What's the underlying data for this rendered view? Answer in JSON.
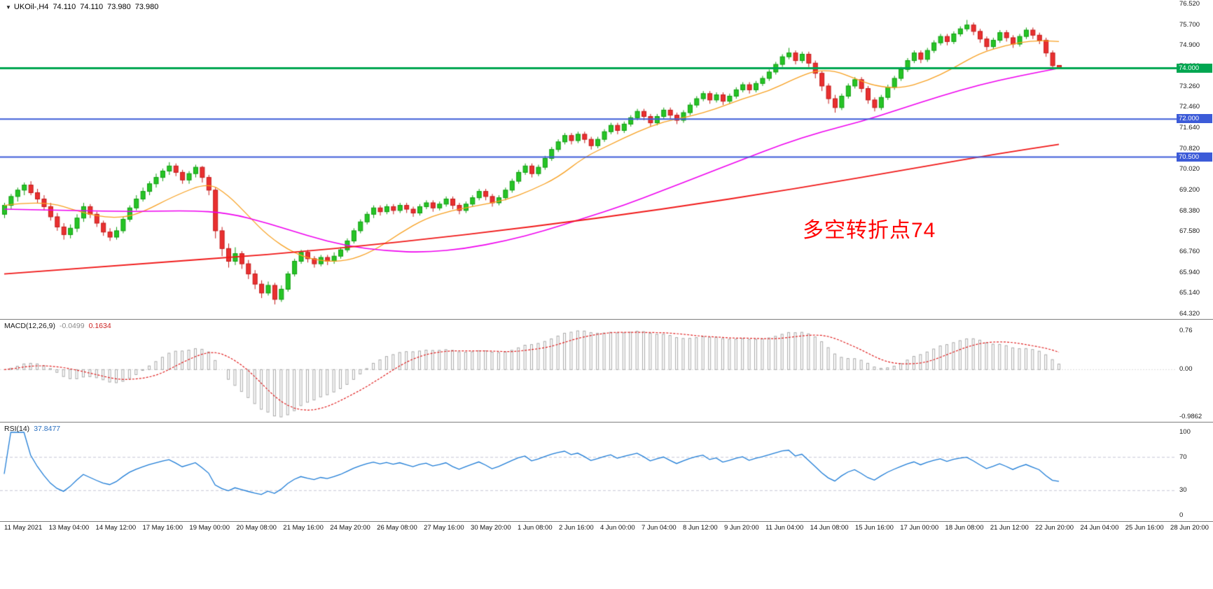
{
  "header": {
    "dropdown_icon": "▼",
    "symbol": "UKOil-,H4",
    "ohlc": {
      "open": "74.110",
      "high": "74.110",
      "low": "73.980",
      "close": "73.980"
    }
  },
  "annotation": {
    "text": "多空转折点74",
    "color": "#FF0000"
  },
  "chart_data": {
    "type": "candlestick",
    "title": "UKOil-,H4",
    "ylim": [
      64.32,
      76.52
    ],
    "y_ticks": [
      "76.520",
      "75.700",
      "74.900",
      "74.080",
      "73.260",
      "72.460",
      "71.640",
      "70.820",
      "70.020",
      "69.200",
      "68.380",
      "67.580",
      "66.760",
      "65.940",
      "65.140",
      "64.320"
    ],
    "x_labels": [
      "11 May 2021",
      "13 May 04:00",
      "14 May 12:00",
      "17 May 16:00",
      "19 May 00:00",
      "20 May 08:00",
      "21 May 16:00",
      "24 May 20:00",
      "26 May 08:00",
      "27 May 16:00",
      "30 May 20:00",
      "1 Jun 08:00",
      "2 Jun 16:00",
      "4 Jun 00:00",
      "7 Jun 04:00",
      "8 Jun 12:00",
      "9 Jun 20:00",
      "11 Jun 04:00",
      "14 Jun 08:00",
      "15 Jun 16:00",
      "17 Jun 00:00",
      "18 Jun 08:00",
      "21 Jun 12:00",
      "22 Jun 20:00",
      "24 Jun 04:00",
      "25 Jun 16:00",
      "28 Jun 20:00"
    ],
    "horizontal_lines": [
      {
        "price": 74.0,
        "label": "74.000",
        "color": "#00A651",
        "width": 3
      },
      {
        "price": 72.0,
        "label": "72.000",
        "color": "#3C5BD8",
        "width": 2
      },
      {
        "price": 70.5,
        "label": "70.500",
        "color": "#3C5BD8",
        "width": 2
      }
    ],
    "candle_colors": {
      "up_fill": "#26C426",
      "up_border": "#0E9E0E",
      "down_fill": "#E93030",
      "down_border": "#C41A1A"
    },
    "moving_averages": [
      {
        "name": "ma-fast",
        "color": "#F7A021",
        "width": 1.3,
        "points": [
          [
            0,
            68.6
          ],
          [
            6,
            68.8
          ],
          [
            12,
            68.3
          ],
          [
            16,
            68.1
          ],
          [
            20,
            68.2
          ],
          [
            26,
            69.0
          ],
          [
            31,
            69.5
          ],
          [
            34,
            69.0
          ],
          [
            37,
            68.2
          ],
          [
            40,
            67.4
          ],
          [
            44,
            66.7
          ],
          [
            48,
            66.4
          ],
          [
            52,
            66.4
          ],
          [
            56,
            66.8
          ],
          [
            60,
            67.5
          ],
          [
            64,
            68.1
          ],
          [
            68,
            68.4
          ],
          [
            72,
            68.6
          ],
          [
            76,
            68.8
          ],
          [
            80,
            69.2
          ],
          [
            84,
            69.7
          ],
          [
            88,
            70.5
          ],
          [
            92,
            71.0
          ],
          [
            96,
            71.5
          ],
          [
            100,
            71.9
          ],
          [
            104,
            72.1
          ],
          [
            108,
            72.4
          ],
          [
            112,
            72.8
          ],
          [
            116,
            73.1
          ],
          [
            120,
            73.6
          ],
          [
            123,
            73.9
          ],
          [
            126,
            73.9
          ],
          [
            129,
            73.6
          ],
          [
            132,
            73.3
          ],
          [
            136,
            73.2
          ],
          [
            140,
            73.5
          ],
          [
            144,
            74.0
          ],
          [
            148,
            74.6
          ],
          [
            152,
            74.9
          ],
          [
            156,
            75.1
          ],
          [
            160,
            75.05
          ]
        ]
      },
      {
        "name": "ma-medium",
        "color": "#EE00EE",
        "width": 1.6,
        "points": [
          [
            0,
            68.45
          ],
          [
            10,
            68.4
          ],
          [
            20,
            68.35
          ],
          [
            28,
            68.4
          ],
          [
            34,
            68.3
          ],
          [
            40,
            67.9
          ],
          [
            46,
            67.4
          ],
          [
            52,
            67.0
          ],
          [
            58,
            66.8
          ],
          [
            64,
            66.75
          ],
          [
            70,
            66.9
          ],
          [
            76,
            67.2
          ],
          [
            82,
            67.6
          ],
          [
            88,
            68.1
          ],
          [
            94,
            68.6
          ],
          [
            100,
            69.2
          ],
          [
            106,
            69.8
          ],
          [
            112,
            70.4
          ],
          [
            118,
            71.0
          ],
          [
            124,
            71.5
          ],
          [
            130,
            71.9
          ],
          [
            136,
            72.4
          ],
          [
            142,
            72.9
          ],
          [
            148,
            73.35
          ],
          [
            154,
            73.7
          ],
          [
            160,
            74.0
          ]
        ]
      },
      {
        "name": "ma-slow",
        "color": "#F01818",
        "width": 1.8,
        "points": [
          [
            0,
            65.9
          ],
          [
            20,
            66.3
          ],
          [
            40,
            66.65
          ],
          [
            60,
            67.15
          ],
          [
            80,
            67.75
          ],
          [
            100,
            68.45
          ],
          [
            120,
            69.25
          ],
          [
            140,
            70.15
          ],
          [
            150,
            70.6
          ],
          [
            160,
            71.0
          ]
        ]
      }
    ],
    "candles": [
      [
        68.25,
        68.7,
        68.1,
        68.6
      ],
      [
        68.6,
        69.05,
        68.45,
        68.95
      ],
      [
        68.95,
        69.3,
        68.75,
        69.2
      ],
      [
        69.2,
        69.5,
        69.0,
        69.4
      ],
      [
        69.4,
        69.55,
        69.0,
        69.1
      ],
      [
        69.1,
        69.25,
        68.7,
        68.85
      ],
      [
        68.85,
        69.0,
        68.4,
        68.55
      ],
      [
        68.55,
        68.7,
        68.0,
        68.15
      ],
      [
        68.15,
        68.3,
        67.6,
        67.75
      ],
      [
        67.75,
        67.9,
        67.25,
        67.45
      ],
      [
        67.45,
        67.85,
        67.3,
        67.7
      ],
      [
        67.7,
        68.25,
        67.55,
        68.1
      ],
      [
        68.1,
        68.7,
        67.95,
        68.55
      ],
      [
        68.55,
        68.65,
        68.1,
        68.25
      ],
      [
        68.25,
        68.35,
        67.75,
        67.9
      ],
      [
        67.9,
        68.0,
        67.4,
        67.55
      ],
      [
        67.55,
        67.7,
        67.2,
        67.35
      ],
      [
        67.35,
        67.75,
        67.25,
        67.6
      ],
      [
        67.6,
        68.15,
        67.5,
        68.05
      ],
      [
        68.05,
        68.6,
        67.95,
        68.5
      ],
      [
        68.5,
        69.0,
        68.4,
        68.85
      ],
      [
        68.85,
        69.3,
        68.75,
        69.15
      ],
      [
        69.15,
        69.55,
        69.0,
        69.45
      ],
      [
        69.45,
        69.85,
        69.3,
        69.7
      ],
      [
        69.7,
        70.05,
        69.55,
        69.95
      ],
      [
        69.95,
        70.3,
        69.8,
        70.15
      ],
      [
        70.15,
        70.25,
        69.75,
        69.9
      ],
      [
        69.9,
        70.0,
        69.45,
        69.6
      ],
      [
        69.6,
        69.95,
        69.45,
        69.85
      ],
      [
        69.85,
        70.2,
        69.7,
        70.1
      ],
      [
        70.1,
        70.15,
        69.5,
        69.7
      ],
      [
        69.7,
        69.8,
        69.0,
        69.2
      ],
      [
        69.2,
        69.3,
        67.3,
        67.6
      ],
      [
        67.6,
        67.75,
        66.6,
        66.9
      ],
      [
        66.9,
        67.1,
        66.15,
        66.4
      ],
      [
        66.4,
        66.95,
        66.25,
        66.7
      ],
      [
        66.7,
        66.8,
        66.1,
        66.3
      ],
      [
        66.3,
        66.45,
        65.7,
        65.9
      ],
      [
        65.9,
        66.05,
        65.3,
        65.5
      ],
      [
        65.5,
        65.65,
        64.95,
        65.15
      ],
      [
        65.15,
        65.6,
        65.05,
        65.45
      ],
      [
        65.45,
        65.55,
        64.7,
        64.9
      ],
      [
        64.9,
        65.45,
        64.8,
        65.3
      ],
      [
        65.3,
        66.0,
        65.2,
        65.9
      ],
      [
        65.9,
        66.5,
        65.8,
        66.4
      ],
      [
        66.4,
        66.85,
        66.3,
        66.75
      ],
      [
        66.75,
        66.85,
        66.35,
        66.5
      ],
      [
        66.5,
        66.6,
        66.15,
        66.3
      ],
      [
        66.3,
        66.65,
        66.2,
        66.55
      ],
      [
        66.55,
        66.65,
        66.25,
        66.4
      ],
      [
        66.4,
        66.75,
        66.3,
        66.6
      ],
      [
        66.6,
        66.95,
        66.5,
        66.85
      ],
      [
        66.85,
        67.3,
        66.75,
        67.2
      ],
      [
        67.2,
        67.7,
        67.1,
        67.6
      ],
      [
        67.6,
        68.05,
        67.5,
        67.95
      ],
      [
        67.95,
        68.35,
        67.85,
        68.25
      ],
      [
        68.25,
        68.6,
        68.1,
        68.5
      ],
      [
        68.5,
        68.6,
        68.2,
        68.35
      ],
      [
        68.35,
        68.65,
        68.25,
        68.55
      ],
      [
        68.55,
        68.65,
        68.25,
        68.4
      ],
      [
        68.4,
        68.7,
        68.3,
        68.6
      ],
      [
        68.6,
        68.7,
        68.3,
        68.45
      ],
      [
        68.45,
        68.55,
        68.15,
        68.3
      ],
      [
        68.3,
        68.65,
        68.2,
        68.55
      ],
      [
        68.55,
        68.8,
        68.45,
        68.7
      ],
      [
        68.7,
        68.8,
        68.35,
        68.5
      ],
      [
        68.5,
        68.75,
        68.4,
        68.65
      ],
      [
        68.65,
        68.95,
        68.55,
        68.85
      ],
      [
        68.85,
        68.95,
        68.45,
        68.6
      ],
      [
        68.6,
        68.7,
        68.25,
        68.4
      ],
      [
        68.4,
        68.75,
        68.3,
        68.65
      ],
      [
        68.65,
        69.0,
        68.55,
        68.9
      ],
      [
        68.9,
        69.25,
        68.8,
        69.15
      ],
      [
        69.15,
        69.25,
        68.8,
        68.95
      ],
      [
        68.95,
        69.05,
        68.55,
        68.7
      ],
      [
        68.7,
        69.0,
        68.6,
        68.9
      ],
      [
        68.9,
        69.3,
        68.8,
        69.2
      ],
      [
        69.2,
        69.65,
        69.1,
        69.55
      ],
      [
        69.55,
        70.0,
        69.45,
        69.9
      ],
      [
        69.9,
        70.25,
        69.8,
        70.15
      ],
      [
        70.15,
        70.25,
        69.7,
        69.85
      ],
      [
        69.85,
        70.2,
        69.75,
        70.1
      ],
      [
        70.1,
        70.55,
        70.0,
        70.45
      ],
      [
        70.45,
        70.9,
        70.35,
        70.8
      ],
      [
        70.8,
        71.2,
        70.7,
        71.1
      ],
      [
        71.1,
        71.45,
        71.0,
        71.35
      ],
      [
        71.35,
        71.45,
        71.0,
        71.15
      ],
      [
        71.15,
        71.5,
        71.05,
        71.4
      ],
      [
        71.4,
        71.5,
        71.05,
        71.2
      ],
      [
        71.2,
        71.3,
        70.8,
        70.95
      ],
      [
        70.95,
        71.3,
        70.85,
        71.2
      ],
      [
        71.2,
        71.6,
        71.1,
        71.5
      ],
      [
        71.5,
        71.85,
        71.4,
        71.75
      ],
      [
        71.75,
        71.85,
        71.4,
        71.55
      ],
      [
        71.55,
        71.9,
        71.45,
        71.8
      ],
      [
        71.8,
        72.15,
        71.7,
        72.05
      ],
      [
        72.05,
        72.4,
        71.95,
        72.3
      ],
      [
        72.3,
        72.4,
        71.95,
        72.1
      ],
      [
        72.1,
        72.2,
        71.7,
        71.85
      ],
      [
        71.85,
        72.2,
        71.75,
        72.1
      ],
      [
        72.1,
        72.45,
        72.0,
        72.35
      ],
      [
        72.35,
        72.45,
        72.0,
        72.15
      ],
      [
        72.15,
        72.25,
        71.8,
        71.95
      ],
      [
        71.95,
        72.35,
        71.85,
        72.25
      ],
      [
        72.25,
        72.65,
        72.15,
        72.55
      ],
      [
        72.55,
        72.9,
        72.45,
        72.8
      ],
      [
        72.8,
        73.1,
        72.7,
        73.0
      ],
      [
        73.0,
        73.1,
        72.6,
        72.75
      ],
      [
        72.75,
        73.05,
        72.65,
        72.95
      ],
      [
        72.95,
        73.05,
        72.55,
        72.7
      ],
      [
        72.7,
        73.0,
        72.6,
        72.9
      ],
      [
        72.9,
        73.25,
        72.8,
        73.15
      ],
      [
        73.15,
        73.45,
        73.05,
        73.35
      ],
      [
        73.35,
        73.45,
        73.0,
        73.15
      ],
      [
        73.15,
        73.5,
        73.05,
        73.4
      ],
      [
        73.4,
        73.7,
        73.3,
        73.6
      ],
      [
        73.6,
        73.95,
        73.5,
        73.85
      ],
      [
        73.85,
        74.25,
        73.75,
        74.15
      ],
      [
        74.15,
        74.55,
        74.05,
        74.45
      ],
      [
        74.45,
        74.8,
        74.35,
        74.6
      ],
      [
        74.6,
        74.7,
        74.15,
        74.3
      ],
      [
        74.3,
        74.65,
        74.2,
        74.55
      ],
      [
        74.55,
        74.65,
        74.05,
        74.2
      ],
      [
        74.2,
        74.3,
        73.6,
        73.8
      ],
      [
        73.8,
        73.9,
        73.1,
        73.3
      ],
      [
        73.3,
        73.4,
        72.6,
        72.8
      ],
      [
        72.8,
        72.95,
        72.25,
        72.45
      ],
      [
        72.45,
        73.0,
        72.35,
        72.9
      ],
      [
        72.9,
        73.4,
        72.8,
        73.3
      ],
      [
        73.3,
        73.65,
        73.2,
        73.55
      ],
      [
        73.55,
        73.65,
        73.05,
        73.2
      ],
      [
        73.2,
        73.3,
        72.6,
        72.75
      ],
      [
        72.75,
        72.85,
        72.3,
        72.45
      ],
      [
        72.45,
        72.95,
        72.35,
        72.85
      ],
      [
        72.85,
        73.35,
        72.75,
        73.25
      ],
      [
        73.25,
        73.7,
        73.15,
        73.6
      ],
      [
        73.6,
        74.05,
        73.5,
        73.95
      ],
      [
        73.95,
        74.4,
        73.85,
        74.3
      ],
      [
        74.3,
        74.7,
        74.2,
        74.6
      ],
      [
        74.6,
        74.7,
        74.2,
        74.35
      ],
      [
        74.35,
        74.8,
        74.25,
        74.7
      ],
      [
        74.7,
        75.1,
        74.6,
        75.0
      ],
      [
        75.0,
        75.35,
        74.9,
        75.25
      ],
      [
        75.25,
        75.35,
        74.9,
        75.05
      ],
      [
        75.05,
        75.45,
        74.95,
        75.35
      ],
      [
        75.35,
        75.65,
        75.25,
        75.55
      ],
      [
        75.55,
        75.9,
        75.45,
        75.7
      ],
      [
        75.7,
        75.8,
        75.3,
        75.45
      ],
      [
        75.45,
        75.55,
        75.0,
        75.15
      ],
      [
        75.15,
        75.25,
        74.7,
        74.85
      ],
      [
        74.85,
        75.2,
        74.75,
        75.1
      ],
      [
        75.1,
        75.5,
        75.0,
        75.4
      ],
      [
        75.4,
        75.5,
        75.05,
        75.2
      ],
      [
        75.2,
        75.3,
        74.8,
        74.95
      ],
      [
        74.95,
        75.35,
        74.85,
        75.25
      ],
      [
        75.25,
        75.6,
        75.15,
        75.5
      ],
      [
        75.5,
        75.6,
        75.15,
        75.3
      ],
      [
        75.3,
        75.4,
        74.95,
        75.1
      ],
      [
        75.1,
        75.2,
        74.45,
        74.6
      ],
      [
        74.6,
        74.7,
        73.95,
        74.1
      ],
      [
        74.11,
        74.11,
        73.98,
        73.98
      ]
    ],
    "indicators": [
      {
        "type": "MACD",
        "label": "MACD(12,26,9)",
        "value_main": "-0.0499",
        "value_signal": "0.1634",
        "params": [
          12,
          26,
          9
        ],
        "ylim": [
          -0.9862,
          0.76
        ],
        "y_ticks": [
          "0.76",
          "0.00",
          "-0.9862"
        ],
        "histogram_color": "#A8A8A8",
        "signal_color": "#E02020"
      },
      {
        "type": "RSI",
        "label": "RSI(14)",
        "value": "37.8477",
        "period": 14,
        "ylim": [
          0,
          100
        ],
        "y_ticks": [
          "100",
          "70",
          "30",
          "0"
        ],
        "levels": [
          70,
          30
        ],
        "line_color": "#1E7CD6",
        "level_color": "#C5C5D5"
      }
    ]
  }
}
